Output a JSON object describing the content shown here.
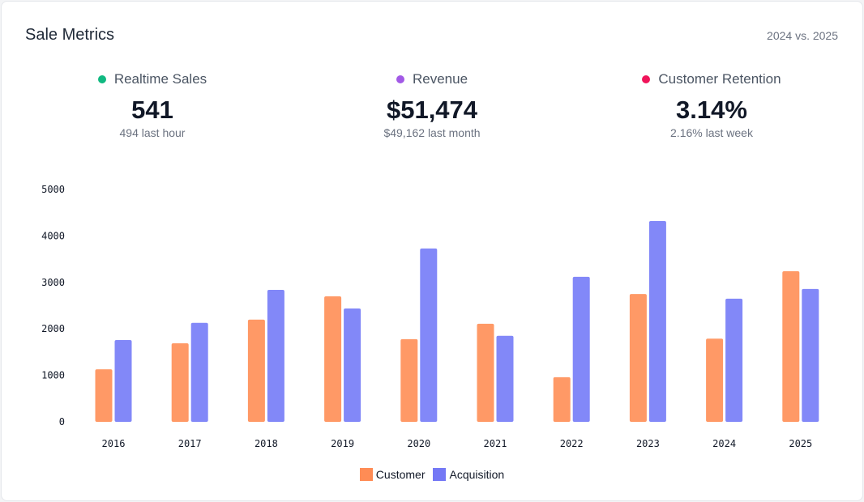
{
  "header": {
    "title": "Sale Metrics",
    "period": "2024 vs. 2025"
  },
  "metrics": [
    {
      "label": "Realtime Sales",
      "value": "541",
      "sub": "494 last hour",
      "color": "#10b981"
    },
    {
      "label": "Revenue",
      "value": "$51,474",
      "sub": "$49,162 last month",
      "color": "#a259e6"
    },
    {
      "label": "Customer Retention",
      "value": "3.14%",
      "sub": "2.16% last week",
      "color": "#f0145a"
    }
  ],
  "chart_data": {
    "type": "bar",
    "categories": [
      "2016",
      "2017",
      "2018",
      "2019",
      "2020",
      "2021",
      "2022",
      "2023",
      "2024",
      "2025"
    ],
    "series": [
      {
        "name": "Customer",
        "color": "#ff9966",
        "values": [
          1130,
          1690,
          2200,
          2700,
          1780,
          2110,
          960,
          2750,
          1790,
          3240
        ]
      },
      {
        "name": "Acquisition",
        "color": "#8288f8",
        "values": [
          1760,
          2130,
          2840,
          2440,
          3730,
          1850,
          3120,
          4320,
          2650,
          2860
        ]
      }
    ],
    "yticks": [
      "0",
      "1000",
      "2000",
      "3000",
      "4000",
      "5000"
    ],
    "ylim": [
      0,
      5000
    ],
    "grid": false,
    "legend": "bottom"
  }
}
